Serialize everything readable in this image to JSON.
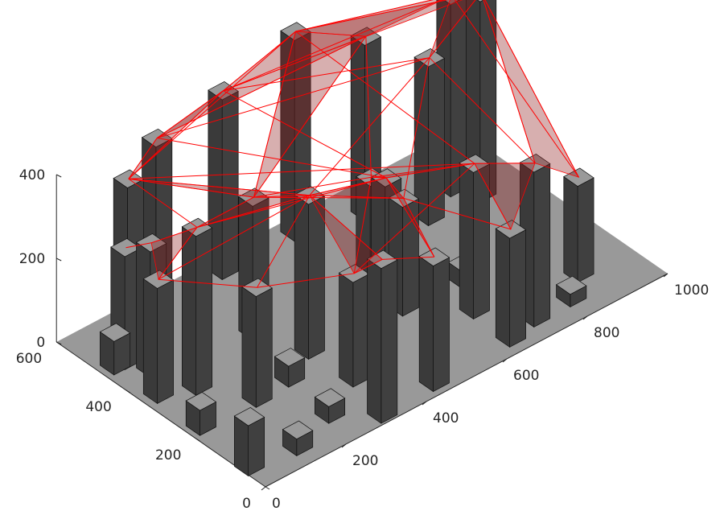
{
  "chart_data": {
    "type": "3d-bar",
    "title": "",
    "xlabel": "",
    "ylabel": "",
    "zlabel": "",
    "xlim": [
      0,
      1000
    ],
    "ylim": [
      0,
      600
    ],
    "zlim": [
      0,
      400
    ],
    "x_ticks": [
      "0",
      "200",
      "400",
      "600",
      "800",
      "1000"
    ],
    "y_ticks": [
      "0",
      "200",
      "400",
      "600"
    ],
    "z_ticks": [
      "0",
      "200",
      "400"
    ],
    "grid": false,
    "colors": {
      "floor": "#999999",
      "building_side": "#404040",
      "building_top": "#9a9a9a",
      "link": "#ff0000",
      "link_fill": "#8b1a1a"
    },
    "buildings": [
      {
        "x": 110,
        "y": 520,
        "h": 380
      },
      {
        "x": 18,
        "y": 67,
        "h": 120
      },
      {
        "x": 168,
        "y": 218,
        "h": 265
      },
      {
        "x": 312,
        "y": 25,
        "h": 370
      },
      {
        "x": 450,
        "y": 35,
        "h": 300
      },
      {
        "x": 648,
        "y": 44,
        "h": 260
      },
      {
        "x": 723,
        "y": 61,
        "h": 370
      },
      {
        "x": 875,
        "y": 111,
        "h": 230
      },
      {
        "x": 815,
        "y": 63,
        "h": 30
      },
      {
        "x": 900,
        "y": 420,
        "h": 480
      },
      {
        "x": 560,
        "y": 560,
        "h": 480
      },
      {
        "x": 380,
        "y": 560,
        "h": 430
      },
      {
        "x": 250,
        "y": 600,
        "h": 360
      },
      {
        "x": 37,
        "y": 350,
        "h": 275
      },
      {
        "x": 108,
        "y": 321,
        "h": 380
      },
      {
        "x": 34,
        "y": 471,
        "h": 80
      },
      {
        "x": 32,
        "y": 222,
        "h": 60
      },
      {
        "x": 238,
        "y": 90,
        "h": 40
      },
      {
        "x": 255,
        "y": 225,
        "h": 50
      },
      {
        "x": 346,
        "y": 145,
        "h": 250
      },
      {
        "x": 127,
        "y": 54,
        "h": 40
      },
      {
        "x": 340,
        "y": 266,
        "h": 370
      },
      {
        "x": 300,
        "y": 380,
        "h": 320
      },
      {
        "x": 654,
        "y": 155,
        "h": 350
      },
      {
        "x": 780,
        "y": 430,
        "h": 380
      },
      {
        "x": 700,
        "y": 520,
        "h": 420
      },
      {
        "x": 870,
        "y": 470,
        "h": 460
      },
      {
        "x": 560,
        "y": 300,
        "h": 280
      },
      {
        "x": 80,
        "y": 420,
        "h": 300
      },
      {
        "x": 60,
        "y": 470,
        "h": 270
      },
      {
        "x": 700,
        "y": 240,
        "h": 40
      },
      {
        "x": 560,
        "y": 250,
        "h": 260
      },
      {
        "x": 540,
        "y": 320,
        "h": 280
      }
    ],
    "links": [
      [
        0,
        12
      ],
      [
        0,
        11
      ],
      [
        0,
        10
      ],
      [
        0,
        21
      ],
      [
        0,
        22
      ],
      [
        12,
        11
      ],
      [
        11,
        10
      ],
      [
        10,
        9
      ],
      [
        10,
        26
      ],
      [
        9,
        26
      ],
      [
        9,
        24
      ],
      [
        11,
        25
      ],
      [
        12,
        25
      ],
      [
        11,
        24
      ],
      [
        21,
        27
      ],
      [
        21,
        31
      ],
      [
        22,
        32
      ],
      [
        14,
        21
      ],
      [
        13,
        14
      ],
      [
        28,
        29
      ],
      [
        28,
        14
      ],
      [
        0,
        14
      ],
      [
        3,
        19
      ],
      [
        3,
        21
      ],
      [
        4,
        27
      ],
      [
        4,
        31
      ],
      [
        5,
        23
      ],
      [
        6,
        23
      ],
      [
        6,
        9
      ],
      [
        7,
        9
      ],
      [
        7,
        26
      ],
      [
        23,
        27
      ],
      [
        19,
        32
      ],
      [
        2,
        21
      ],
      [
        2,
        19
      ],
      [
        22,
        10
      ],
      [
        22,
        25
      ],
      [
        11,
        27
      ],
      [
        12,
        27
      ],
      [
        0,
        23
      ],
      [
        12,
        24
      ],
      [
        14,
        22
      ],
      [
        13,
        2
      ],
      [
        19,
        23
      ],
      [
        3,
        4
      ],
      [
        24,
        31
      ],
      [
        25,
        32
      ],
      [
        10,
        23
      ],
      [
        11,
        26
      ],
      [
        21,
        24
      ],
      [
        22,
        31
      ],
      [
        27,
        32
      ],
      [
        6,
        24
      ],
      [
        14,
        27
      ],
      [
        13,
        21
      ],
      [
        5,
        31
      ]
    ],
    "faces": [
      [
        0,
        12,
        11
      ],
      [
        11,
        10,
        9
      ],
      [
        10,
        25,
        26
      ],
      [
        0,
        21,
        22
      ],
      [
        21,
        27,
        31
      ],
      [
        14,
        21,
        22
      ],
      [
        3,
        19,
        21
      ],
      [
        4,
        27,
        31
      ],
      [
        5,
        6,
        23
      ],
      [
        6,
        7,
        9
      ],
      [
        9,
        24,
        26
      ],
      [
        12,
        11,
        25
      ],
      [
        22,
        10,
        25
      ],
      [
        23,
        27,
        32
      ],
      [
        13,
        14,
        28
      ]
    ]
  }
}
